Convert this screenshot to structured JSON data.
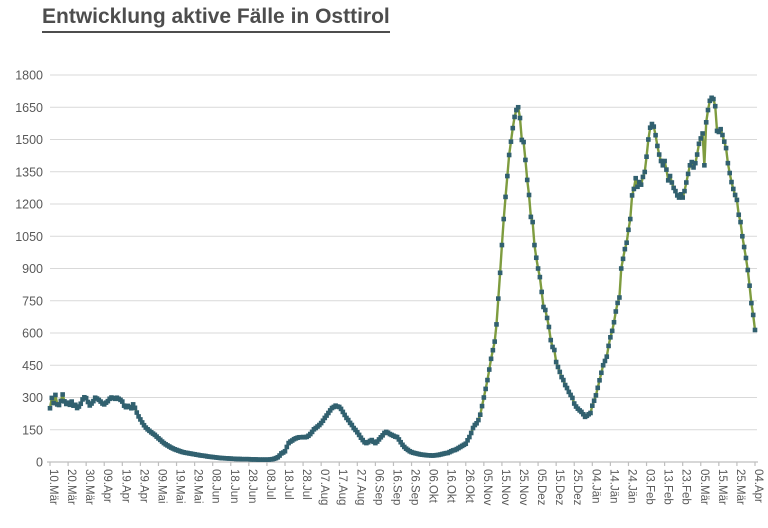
{
  "title": "Entwicklung aktive Fälle in Osttirol",
  "colors": {
    "title_text": "#4d4d4d",
    "gridline": "#d9d9d9",
    "axis_line": "#bfbfbf",
    "tick_label": "#595959",
    "series_line": "#7e9c3f",
    "series_marker": "#31606f",
    "background": "#ffffff"
  },
  "chart_data": {
    "type": "line",
    "title": "Entwicklung aktive Fälle in Osttirol",
    "xlabel": "",
    "ylabel": "",
    "ylim": [
      0,
      1800
    ],
    "ytick_step": 150,
    "yticks": [
      0,
      150,
      300,
      450,
      600,
      750,
      900,
      1050,
      1200,
      1350,
      1500,
      1650,
      1800
    ],
    "grid": "horizontal",
    "legend": "none",
    "marker": "square",
    "x_label_every_n_points": 10,
    "x_labels": [
      "10.Mär",
      "20.Mär",
      "30.Mär",
      "09.Apr",
      "19.Apr",
      "29.Apr",
      "09.Mai",
      "19.Mai",
      "29.Mai",
      "08.Jun",
      "18.Jun",
      "28.Jun",
      "08.Jul",
      "18.Jul",
      "28.Jul",
      "07.Aug",
      "17.Aug",
      "27.Aug",
      "06.Sep",
      "16.Sep",
      "26.Sep",
      "06.Okt",
      "16.Okt",
      "26.Okt",
      "05.Nov",
      "15.Nov",
      "25.Nov",
      "05.Dez",
      "15.Dez",
      "25.Dez",
      "04.Jän",
      "14.Jän",
      "24.Jän",
      "03.Feb",
      "13.Feb",
      "23.Feb",
      "05.Mär",
      "15.Mär",
      "25.Mär",
      "04.Apr"
    ],
    "series": [
      {
        "name": "aktive Fälle",
        "values": [
          250,
          298,
          274,
          312,
          268,
          265,
          284,
          314,
          282,
          270,
          276,
          266,
          281,
          262,
          266,
          251,
          258,
          271,
          291,
          301,
          297,
          279,
          263,
          272,
          283,
          299,
          295,
          289,
          281,
          272,
          268,
          276,
          283,
          294,
          300,
          297,
          294,
          299,
          294,
          289,
          281,
          262,
          255,
          261,
          256,
          250,
          268,
          252,
          230,
          212,
          198,
          184,
          171,
          160,
          152,
          145,
          138,
          132,
          126,
          118,
          110,
          103,
          95,
          88,
          82,
          77,
          72,
          67,
          63,
          59,
          56,
          53,
          50,
          47,
          45,
          43,
          42,
          40,
          39,
          37,
          36,
          34,
          33,
          31,
          30,
          29,
          28,
          26,
          25,
          24,
          23,
          22,
          21,
          20,
          19,
          18,
          18,
          17,
          17,
          16,
          16,
          15,
          15,
          14,
          14,
          14,
          13,
          13,
          13,
          13,
          13,
          12,
          12,
          12,
          12,
          11,
          11,
          11,
          11,
          11,
          11,
          11,
          12,
          13,
          15,
          18,
          22,
          30,
          40,
          44,
          50,
          70,
          88,
          95,
          100,
          106,
          110,
          113,
          115,
          115,
          116,
          115,
          117,
          122,
          130,
          140,
          152,
          158,
          165,
          172,
          181,
          192,
          205,
          216,
          228,
          240,
          251,
          256,
          262,
          258,
          256,
          247,
          233,
          219,
          205,
          195,
          182,
          172,
          158,
          149,
          138,
          126,
          113,
          102,
          92,
          88,
          92,
          98,
          102,
          94,
          88,
          95,
          105,
          115,
          124,
          135,
          140,
          136,
          130,
          126,
          122,
          118,
          116,
          105,
          92,
          80,
          70,
          62,
          56,
          50,
          46,
          43,
          41,
          39,
          37,
          35,
          34,
          33,
          32,
          31,
          31,
          30,
          30,
          31,
          32,
          33,
          35,
          37,
          39,
          41,
          42,
          46,
          50,
          54,
          56,
          60,
          65,
          70,
          75,
          80,
          85,
          101,
          116,
          135,
          158,
          172,
          180,
          195,
          220,
          260,
          300,
          340,
          381,
          430,
          480,
          520,
          560,
          640,
          760,
          880,
          1009,
          1130,
          1233,
          1330,
          1428,
          1490,
          1553,
          1605,
          1637,
          1650,
          1600,
          1498,
          1488,
          1405,
          1312,
          1242,
          1140,
          1116,
          1009,
          950,
          900,
          860,
          791,
          721,
          707,
          670,
          628,
          567,
          535,
          521,
          465,
          442,
          419,
          395,
          381,
          358,
          344,
          326,
          312,
          298,
          272,
          258,
          248,
          240,
          233,
          222,
          210,
          215,
          222,
          228,
          262,
          285,
          310,
          345,
          380,
          415,
          450,
          470,
          490,
          540,
          580,
          610,
          650,
          700,
          740,
          765,
          900,
          945,
          990,
          1020,
          1080,
          1130,
          1240,
          1270,
          1320,
          1280,
          1302,
          1290,
          1326,
          1349,
          1420,
          1500,
          1555,
          1572,
          1560,
          1520,
          1470,
          1430,
          1400,
          1380,
          1400,
          1360,
          1310,
          1330,
          1300,
          1275,
          1260,
          1240,
          1230,
          1245,
          1230,
          1260,
          1300,
          1340,
          1380,
          1395,
          1370,
          1390,
          1430,
          1480,
          1505,
          1528,
          1380,
          1580,
          1637,
          1680,
          1694,
          1688,
          1655,
          1540,
          1535,
          1548,
          1521,
          1490,
          1460,
          1390,
          1344,
          1302,
          1270,
          1242,
          1219,
          1150,
          1116,
          1050,
          1000,
          949,
          893,
          820,
          739,
          684,
          614
        ]
      }
    ]
  }
}
